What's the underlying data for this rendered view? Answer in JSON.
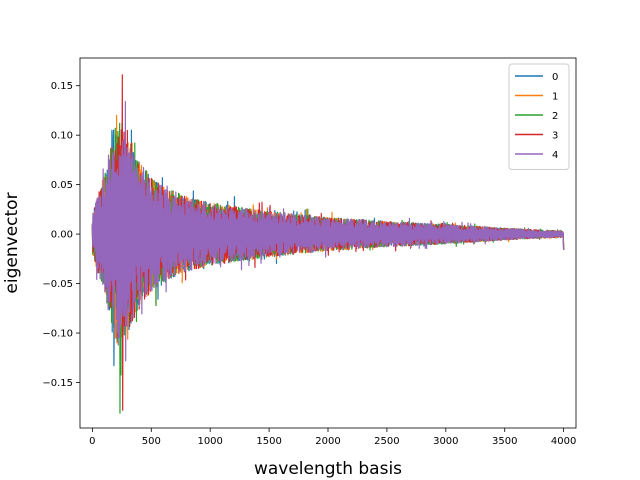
{
  "chart_data": {
    "type": "line",
    "title": "",
    "xlabel": "wavelength basis",
    "ylabel": "eigenvector",
    "xlim": [
      -105,
      4105
    ],
    "ylim": [
      -0.196,
      0.178
    ],
    "x_ticks": [
      0,
      500,
      1000,
      1500,
      2000,
      2500,
      3000,
      3500,
      4000
    ],
    "y_ticks": [
      -0.15,
      -0.1,
      -0.05,
      0.0,
      0.05,
      0.1,
      0.15
    ],
    "y_tick_labels": [
      "−0.15",
      "−0.10",
      "−0.05",
      "0.00",
      "0.05",
      "0.10",
      "0.15"
    ],
    "grid": false,
    "legend_position": "top-right",
    "x_range": [
      0,
      4000
    ],
    "envelope": {
      "x": [
        0,
        100,
        200,
        300,
        400,
        500,
        600,
        800,
        1000,
        1500,
        2000,
        2500,
        3000,
        3500,
        4000
      ],
      "amp": [
        0.02,
        0.06,
        0.11,
        0.1,
        0.075,
        0.058,
        0.048,
        0.038,
        0.032,
        0.023,
        0.017,
        0.013,
        0.01,
        0.006,
        0.003
      ]
    },
    "series": [
      {
        "name": "0",
        "color": "#1f77b4",
        "peak_max": 0.105,
        "peak_min": -0.133
      },
      {
        "name": "1",
        "color": "#ff7f0e",
        "peak_max": 0.12,
        "peak_min": -0.11
      },
      {
        "name": "2",
        "color": "#2ca02c",
        "peak_max": 0.112,
        "peak_min": -0.181
      },
      {
        "name": "3",
        "color": "#d62728",
        "peak_max": 0.161,
        "peak_min": -0.178
      },
      {
        "name": "4",
        "color": "#9467bd",
        "peak_max": 0.134,
        "peak_min": -0.128
      }
    ]
  }
}
